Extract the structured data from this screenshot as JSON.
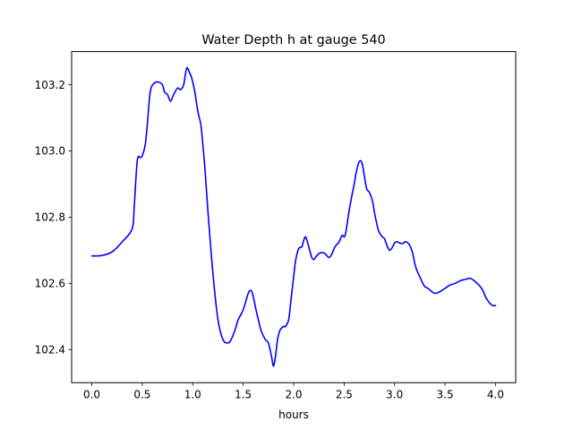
{
  "chart_data": {
    "type": "line",
    "title": "Water Depth h at gauge 540",
    "xlabel": "hours",
    "ylabel": "",
    "xlim": [
      -0.2,
      4.2
    ],
    "ylim": [
      102.3,
      103.3
    ],
    "xticks": [
      0.0,
      0.5,
      1.0,
      1.5,
      2.0,
      2.5,
      3.0,
      3.5,
      4.0
    ],
    "xtick_labels": [
      "0.0",
      "0.5",
      "1.0",
      "1.5",
      "2.0",
      "2.5",
      "3.0",
      "3.5",
      "4.0"
    ],
    "yticks": [
      102.4,
      102.6,
      102.8,
      103.0,
      103.2
    ],
    "ytick_labels": [
      "102.4",
      "102.6",
      "102.8",
      "103.0",
      "103.2"
    ],
    "grid": false,
    "series": [
      {
        "color": "#0000ff",
        "x": [
          0.0,
          0.1,
          0.2,
          0.3,
          0.4,
          0.42,
          0.45,
          0.48,
          0.5,
          0.53,
          0.55,
          0.58,
          0.62,
          0.66,
          0.7,
          0.72,
          0.75,
          0.78,
          0.81,
          0.85,
          0.88,
          0.91,
          0.94,
          0.97,
          0.99,
          1.02,
          1.05,
          1.08,
          1.1,
          1.12,
          1.15,
          1.2,
          1.25,
          1.3,
          1.35,
          1.38,
          1.42,
          1.45,
          1.5,
          1.55,
          1.58,
          1.6,
          1.62,
          1.65,
          1.68,
          1.72,
          1.75,
          1.78,
          1.8,
          1.82,
          1.84,
          1.86,
          1.88,
          1.9,
          1.92,
          1.95,
          1.97,
          2.0,
          2.02,
          2.05,
          2.08,
          2.1,
          2.12,
          2.15,
          2.18,
          2.2,
          2.22,
          2.25,
          2.28,
          2.31,
          2.35,
          2.38,
          2.4,
          2.42,
          2.45,
          2.48,
          2.51,
          2.55,
          2.58,
          2.6,
          2.62,
          2.65,
          2.68,
          2.72,
          2.75,
          2.78,
          2.8,
          2.82,
          2.84,
          2.86,
          2.88,
          2.9,
          2.92,
          2.95,
          2.98,
          3.0,
          3.02,
          3.05,
          3.08,
          3.1,
          3.12,
          3.15,
          3.18,
          3.2,
          3.22,
          3.25,
          3.28,
          3.3,
          3.33,
          3.37,
          3.4,
          3.45,
          3.5,
          3.55,
          3.6,
          3.65,
          3.7,
          3.75,
          3.8,
          3.85,
          3.88,
          3.9,
          3.93,
          3.97,
          4.0
        ],
        "y": [
          102.683,
          102.684,
          102.695,
          102.725,
          102.765,
          102.83,
          102.97,
          102.98,
          102.985,
          103.02,
          103.08,
          103.18,
          103.205,
          103.208,
          103.2,
          103.178,
          103.17,
          103.15,
          103.17,
          103.19,
          103.185,
          103.2,
          103.25,
          103.235,
          103.22,
          103.18,
          103.12,
          103.08,
          103.02,
          102.95,
          102.82,
          102.63,
          102.49,
          102.43,
          102.42,
          102.43,
          102.46,
          102.49,
          102.52,
          102.57,
          102.578,
          102.56,
          102.53,
          102.49,
          102.455,
          102.43,
          102.42,
          102.38,
          102.35,
          102.38,
          102.43,
          102.455,
          102.465,
          102.47,
          102.47,
          102.49,
          102.54,
          102.62,
          102.67,
          102.705,
          102.71,
          102.73,
          102.74,
          102.71,
          102.678,
          102.672,
          102.68,
          102.69,
          102.693,
          102.69,
          102.678,
          102.69,
          102.705,
          102.715,
          102.725,
          102.745,
          102.745,
          102.82,
          102.87,
          102.9,
          102.935,
          102.968,
          102.96,
          102.89,
          102.875,
          102.85,
          102.815,
          102.785,
          102.76,
          102.748,
          102.74,
          102.735,
          102.718,
          102.7,
          102.71,
          102.722,
          102.726,
          102.722,
          102.72,
          102.725,
          102.725,
          102.715,
          102.69,
          102.66,
          102.64,
          102.62,
          102.6,
          102.59,
          102.585,
          102.575,
          102.57,
          102.575,
          102.585,
          102.595,
          102.6,
          102.608,
          102.612,
          102.615,
          102.605,
          102.59,
          102.575,
          102.56,
          102.545,
          102.533,
          102.533
        ]
      }
    ]
  }
}
